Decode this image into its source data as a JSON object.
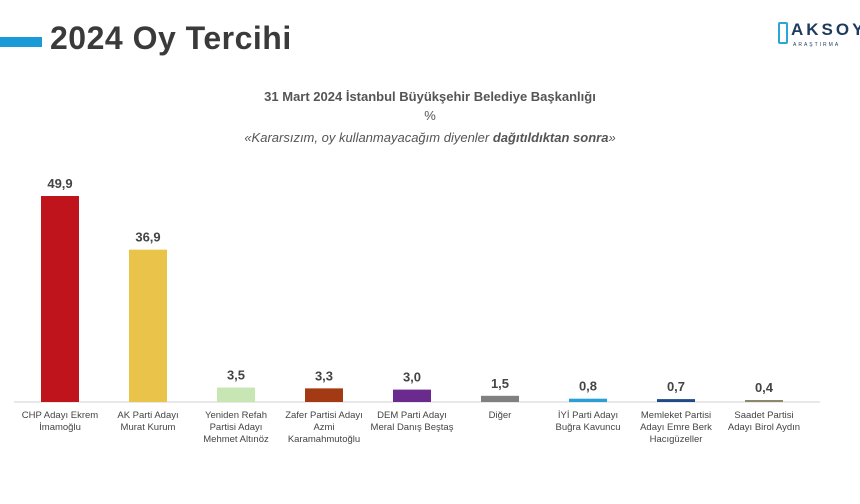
{
  "header": {
    "title": "2024 Oy Tercihi",
    "logo_text": "AKSOY",
    "logo_sub": "ARAŞTIRMA"
  },
  "chart_data": {
    "type": "bar",
    "title": "31 Mart 2024 İstanbul Büyükşehir Belediye Başkanlığı",
    "unit": "%",
    "note_prefix": "«Kararsızım, oy kullanmayacağım diyenler ",
    "note_bold": "dağıtıldıktan sonra",
    "note_suffix": "»",
    "categories": [
      "CHP Adayı Ekrem İmamoğlu",
      "AK Parti Adayı Murat Kurum",
      "Yeniden Refah Partisi Adayı Mehmet Altınöz",
      "Zafer Partisi Adayı Azmi Karamahmutoğlu",
      "DEM Parti Adayı Meral Danış Beştaş",
      "Diğer",
      "İYİ Parti Adayı Buğra Kavuncu",
      "Memleket Partisi Adayı Emre Berk Hacıgüzeller",
      "Saadet Partisi Adayı Birol Aydın"
    ],
    "values": [
      49.9,
      36.9,
      3.5,
      3.3,
      3.0,
      1.5,
      0.8,
      0.7,
      0.4
    ],
    "value_labels": [
      "49,9",
      "36,9",
      "3,5",
      "3,3",
      "3,0",
      "1,5",
      "0,8",
      "0,7",
      "0,4"
    ],
    "colors": [
      "#c0141c",
      "#eac44a",
      "#c8e6b4",
      "#a33a14",
      "#6a2a8e",
      "#808080",
      "#2a9fd6",
      "#1e4a8a",
      "#8a8a6a"
    ],
    "ylim": [
      0,
      49.9
    ],
    "grid": false,
    "legend": "none"
  }
}
